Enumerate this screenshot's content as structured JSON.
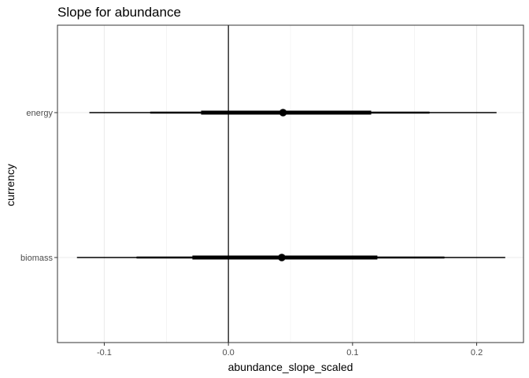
{
  "chart_data": {
    "type": "interval",
    "title": "Slope for abundance",
    "xlabel": "abundance_slope_scaled",
    "ylabel": "currency",
    "xlim": [
      -0.1377,
      0.2377
    ],
    "x_ticks": [
      -0.1,
      0.0,
      0.1,
      0.2
    ],
    "x_tick_labels": [
      "-0.1",
      "0.0",
      "0.1",
      "0.2"
    ],
    "reference_line_x": 0,
    "grid": true,
    "categories": [
      "energy",
      "biomass"
    ],
    "series": [
      {
        "category": "energy",
        "point": 0.044,
        "interval_outer": [
          -0.112,
          0.216
        ],
        "interval_mid": [
          -0.063,
          0.162
        ],
        "interval_inner": [
          -0.022,
          0.115
        ]
      },
      {
        "category": "biomass",
        "point": 0.043,
        "interval_outer": [
          -0.122,
          0.223
        ],
        "interval_mid": [
          -0.074,
          0.174
        ],
        "interval_inner": [
          -0.029,
          0.12
        ]
      }
    ],
    "colors": {
      "panel_border": "#333333",
      "grid": "#ebebeb",
      "tick_text": "#4d4d4d",
      "marks": "#000000"
    }
  }
}
